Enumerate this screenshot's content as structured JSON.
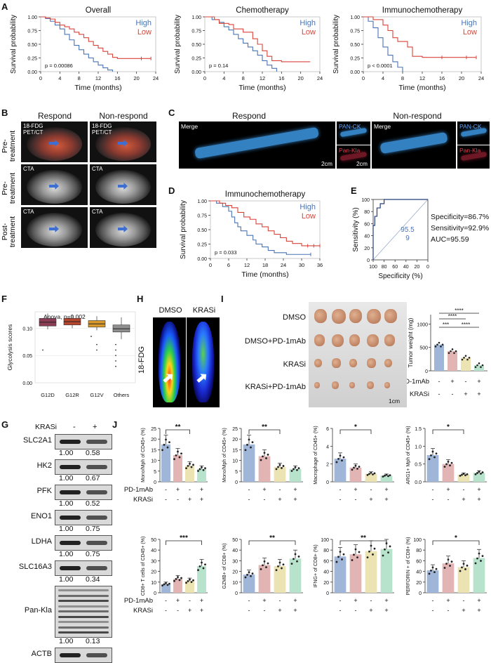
{
  "panel_labels": {
    "A": "A",
    "B": "B",
    "C": "C",
    "D": "D",
    "E": "E",
    "F": "F",
    "G": "G",
    "H": "H",
    "I": "I",
    "J": "J"
  },
  "km_legend": {
    "high": "High",
    "low": "Low"
  },
  "colors": {
    "high": "#4a74b5",
    "low": "#d9443a",
    "bar_blue": "#9fb6d9",
    "bar_pink": "#e3b4b4",
    "bar_yellow": "#ece3b3",
    "bar_green": "#b7e3cc"
  },
  "km_panels": [
    {
      "title": "Overall",
      "pvalue": "p = 0.00086",
      "xlabel": "Time (months)",
      "ylabel": "Survival probability",
      "xticks": [
        "0",
        "4",
        "8",
        "12",
        "16",
        "20",
        "24"
      ],
      "yticks": [
        "0.00",
        "0.25",
        "0.50",
        "0.75",
        "1.00"
      ]
    },
    {
      "title": "Chemotherapy",
      "pvalue": "p = 0.14",
      "xlabel": "Time (months)",
      "ylabel": "Survival probability",
      "xticks": [
        "0",
        "4",
        "8",
        "12",
        "16",
        "20",
        "24"
      ],
      "yticks": [
        "0.00",
        "0.25",
        "0.50",
        "0.75",
        "1.00"
      ]
    },
    {
      "title": "Immunochemotherapy",
      "pvalue": "p < 0.0001",
      "xlabel": "Time (months)",
      "ylabel": "Survival probability",
      "xticks": [
        "0",
        "4",
        "8",
        "12",
        "16",
        "20",
        "24"
      ],
      "yticks": [
        "0.00",
        "0.25",
        "0.50",
        "0.75",
        "1.00"
      ]
    }
  ],
  "panel_b": {
    "col1": "Respond",
    "col2": "Non-respond",
    "rows": [
      "Pre-\ntreatment",
      "Pre-\ntreatment",
      "Post-\ntreatment"
    ],
    "tags": [
      "18-FDG\nPET/CT",
      "18-FDG\nPET/CT",
      "CTA",
      "CTA",
      "CTA",
      "CTA"
    ]
  },
  "panel_c": {
    "respond": "Respond",
    "nonrespond": "Non-respond",
    "merge": "Merge",
    "pan_ck": "PAN-CK",
    "pan_kla": "Pan-Kla",
    "scale1": "2cm",
    "scale2": "2cm"
  },
  "panel_d": {
    "title": "Immunochemotherapy",
    "pvalue": "p = 0.033",
    "xlabel": "Time (months)",
    "ylabel": "Survival probability",
    "xticks": [
      "0",
      "6",
      "12",
      "18",
      "24",
      "30",
      "36"
    ],
    "yticks": [
      "0.00",
      "0.25",
      "0.50",
      "0.75",
      "1.00"
    ]
  },
  "panel_e": {
    "xlabel": "Specificity (%)",
    "ylabel": "Sensitivity (%)",
    "xticks": [
      "100",
      "80",
      "60",
      "40",
      "20",
      "0"
    ],
    "yticks": [
      "0",
      "20",
      "40",
      "60",
      "80",
      "100"
    ],
    "auc_inline": "95.5",
    "auc_inline2": "9",
    "specificity": "Specificity=86.7%",
    "sensitivity": "Sensitivity=92.9%",
    "auc": "AUC=95.59"
  },
  "panel_f": {
    "stat": "Anova, p=0.002",
    "ylabel": "Glycolysis scores",
    "categories": [
      "G12D",
      "G12R",
      "G12V",
      "Others"
    ],
    "yticks": [
      "0.00",
      "0.05",
      "0.10"
    ]
  },
  "panel_h": {
    "dmso": "DMSO",
    "krasi": "KRASi",
    "tracer": "18-FDG"
  },
  "panel_i": {
    "groups": [
      "DMSO",
      "DMSO+PD-1mAb",
      "KRASi",
      "KRASi+PD-1mAb"
    ],
    "scale": "1cm",
    "ylabel": "Tumor weight (mg)",
    "yticks": [
      "0",
      "500",
      "1000"
    ],
    "row_pd1": "PD-1mAb",
    "row_krasi": "KRASi",
    "signs_pd1": [
      "-",
      "+",
      "-",
      "+"
    ],
    "signs_krasi": [
      "-",
      "-",
      "+",
      "+"
    ],
    "sig": [
      "****",
      "****",
      "***",
      "****"
    ]
  },
  "panel_g": {
    "header": "KRASi",
    "minus": "-",
    "plus": "+",
    "proteins": [
      {
        "name": "SLC2A1",
        "v1": "1.00",
        "v2": "0.58"
      },
      {
        "name": "HK2",
        "v1": "1.00",
        "v2": "0.67"
      },
      {
        "name": "PFK",
        "v1": "1.00",
        "v2": "0.52"
      },
      {
        "name": "ENO1",
        "v1": "1.00",
        "v2": "0.75"
      },
      {
        "name": "LDHA",
        "v1": "1.00",
        "v2": "0.75"
      },
      {
        "name": "SLC16A3",
        "v1": "1.00",
        "v2": "0.34"
      },
      {
        "name": "Pan-Kla",
        "v1": "1.00",
        "v2": "0.13"
      },
      {
        "name": "ACTB",
        "v1": "",
        "v2": ""
      }
    ]
  },
  "panel_j": {
    "row_pd1": "PD-1mAb",
    "row_krasi": "KRASi",
    "signs_pd1": [
      "-",
      "+",
      "-",
      "+"
    ],
    "signs_krasi": [
      "-",
      "-",
      "+",
      "+"
    ],
    "plots": [
      {
        "ylabel": "Mono/Mph of CD45+ (%)",
        "yticks": [
          "0",
          "5",
          "10",
          "15",
          "20",
          "25"
        ],
        "ymax": 25,
        "values": [
          17.5,
          12.5,
          7.5,
          6
        ],
        "sig": "**",
        "sig_from": 0,
        "sig_to": 2
      },
      {
        "ylabel": "Mono/Mph of CD45+ (%)",
        "yticks": [
          "0",
          "5",
          "10",
          "15",
          "20",
          "25"
        ],
        "ymax": 25,
        "values": [
          17.5,
          12,
          7,
          6
        ],
        "sig": "**",
        "sig_from": 0,
        "sig_to": 2
      },
      {
        "ylabel": "Macrophage of CD45+ (%)",
        "yticks": [
          "0",
          "2",
          "4",
          "6"
        ],
        "ymax": 6,
        "values": [
          2.6,
          1.6,
          0.9,
          0.7
        ],
        "sig": "*",
        "sig_from": 0,
        "sig_to": 2
      },
      {
        "ylabel": "ARG1+ Mph of CD45+ (%)",
        "yticks": [
          "0.0",
          "0.5",
          "1.0",
          "1.5"
        ],
        "ymax": 1.5,
        "values": [
          0.75,
          0.5,
          0.2,
          0.25
        ],
        "sig": "*",
        "sig_from": 0,
        "sig_to": 2
      },
      {
        "ylabel": "CD8+ T cells of CD45+ (%)",
        "yticks": [
          "0",
          "10",
          "20",
          "30",
          "40",
          "50"
        ],
        "ymax": 50,
        "values": [
          8,
          13,
          11,
          25
        ],
        "sig": "***",
        "sig_from": 0,
        "sig_to": 3
      },
      {
        "ylabel": "GZMB+ of CD8+ (%)",
        "yticks": [
          "0",
          "10",
          "20",
          "30",
          "40",
          "50"
        ],
        "ymax": 50,
        "values": [
          17,
          26,
          25,
          32
        ],
        "sig": "**",
        "sig_from": 0,
        "sig_to": 3
      },
      {
        "ylabel": "IFNG+ of CD8+ (%)",
        "yticks": [
          "0",
          "20",
          "40",
          "60",
          "80",
          "100"
        ],
        "ymax": 100,
        "values": [
          68,
          72,
          78,
          82
        ],
        "sig": "**",
        "sig_from": 0,
        "sig_to": 3
      },
      {
        "ylabel": "PERFORIN + of CD8+ (%)",
        "yticks": [
          "0",
          "20",
          "40",
          "60",
          "80",
          "100"
        ],
        "ymax": 100,
        "values": [
          42,
          55,
          48,
          65
        ],
        "sig": "*",
        "sig_from": 0,
        "sig_to": 3
      }
    ]
  }
}
